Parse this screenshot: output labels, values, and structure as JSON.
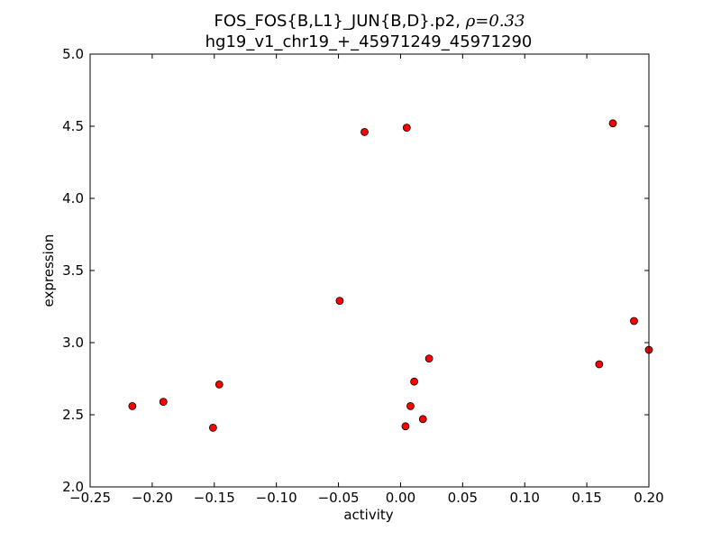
{
  "chart_data": {
    "type": "scatter",
    "title_line1_prefix": "FOS_FOS{B,L1}_JUN{B,D}.p2, ",
    "title_line1_rho": "ρ=0.33",
    "title_line2": "hg19_v1_chr19_+_45971249_45971290",
    "xlabel": "activity",
    "ylabel": "expression",
    "xlim": [
      -0.25,
      0.2
    ],
    "ylim": [
      2.0,
      5.0
    ],
    "xticks": [
      "−0.25",
      "−0.20",
      "−0.15",
      "−0.10",
      "−0.05",
      "0.00",
      "0.05",
      "0.10",
      "0.15",
      "0.20"
    ],
    "yticks": [
      "2.0",
      "2.5",
      "3.0",
      "3.5",
      "4.0",
      "4.5",
      "5.0"
    ],
    "grid": false,
    "marker_color": "#ff0000",
    "marker_edge_color": "#000000",
    "points": [
      {
        "x": -0.216,
        "y": 2.56
      },
      {
        "x": -0.191,
        "y": 2.59
      },
      {
        "x": -0.151,
        "y": 2.41
      },
      {
        "x": -0.146,
        "y": 2.71
      },
      {
        "x": -0.049,
        "y": 3.29
      },
      {
        "x": -0.029,
        "y": 4.46
      },
      {
        "x": 0.005,
        "y": 4.49
      },
      {
        "x": 0.004,
        "y": 2.42
      },
      {
        "x": 0.008,
        "y": 2.56
      },
      {
        "x": 0.011,
        "y": 2.73
      },
      {
        "x": 0.018,
        "y": 2.47
      },
      {
        "x": 0.023,
        "y": 2.89
      },
      {
        "x": 0.16,
        "y": 2.85
      },
      {
        "x": 0.171,
        "y": 4.52
      },
      {
        "x": 0.188,
        "y": 3.15
      },
      {
        "x": 0.2,
        "y": 2.95
      }
    ]
  }
}
